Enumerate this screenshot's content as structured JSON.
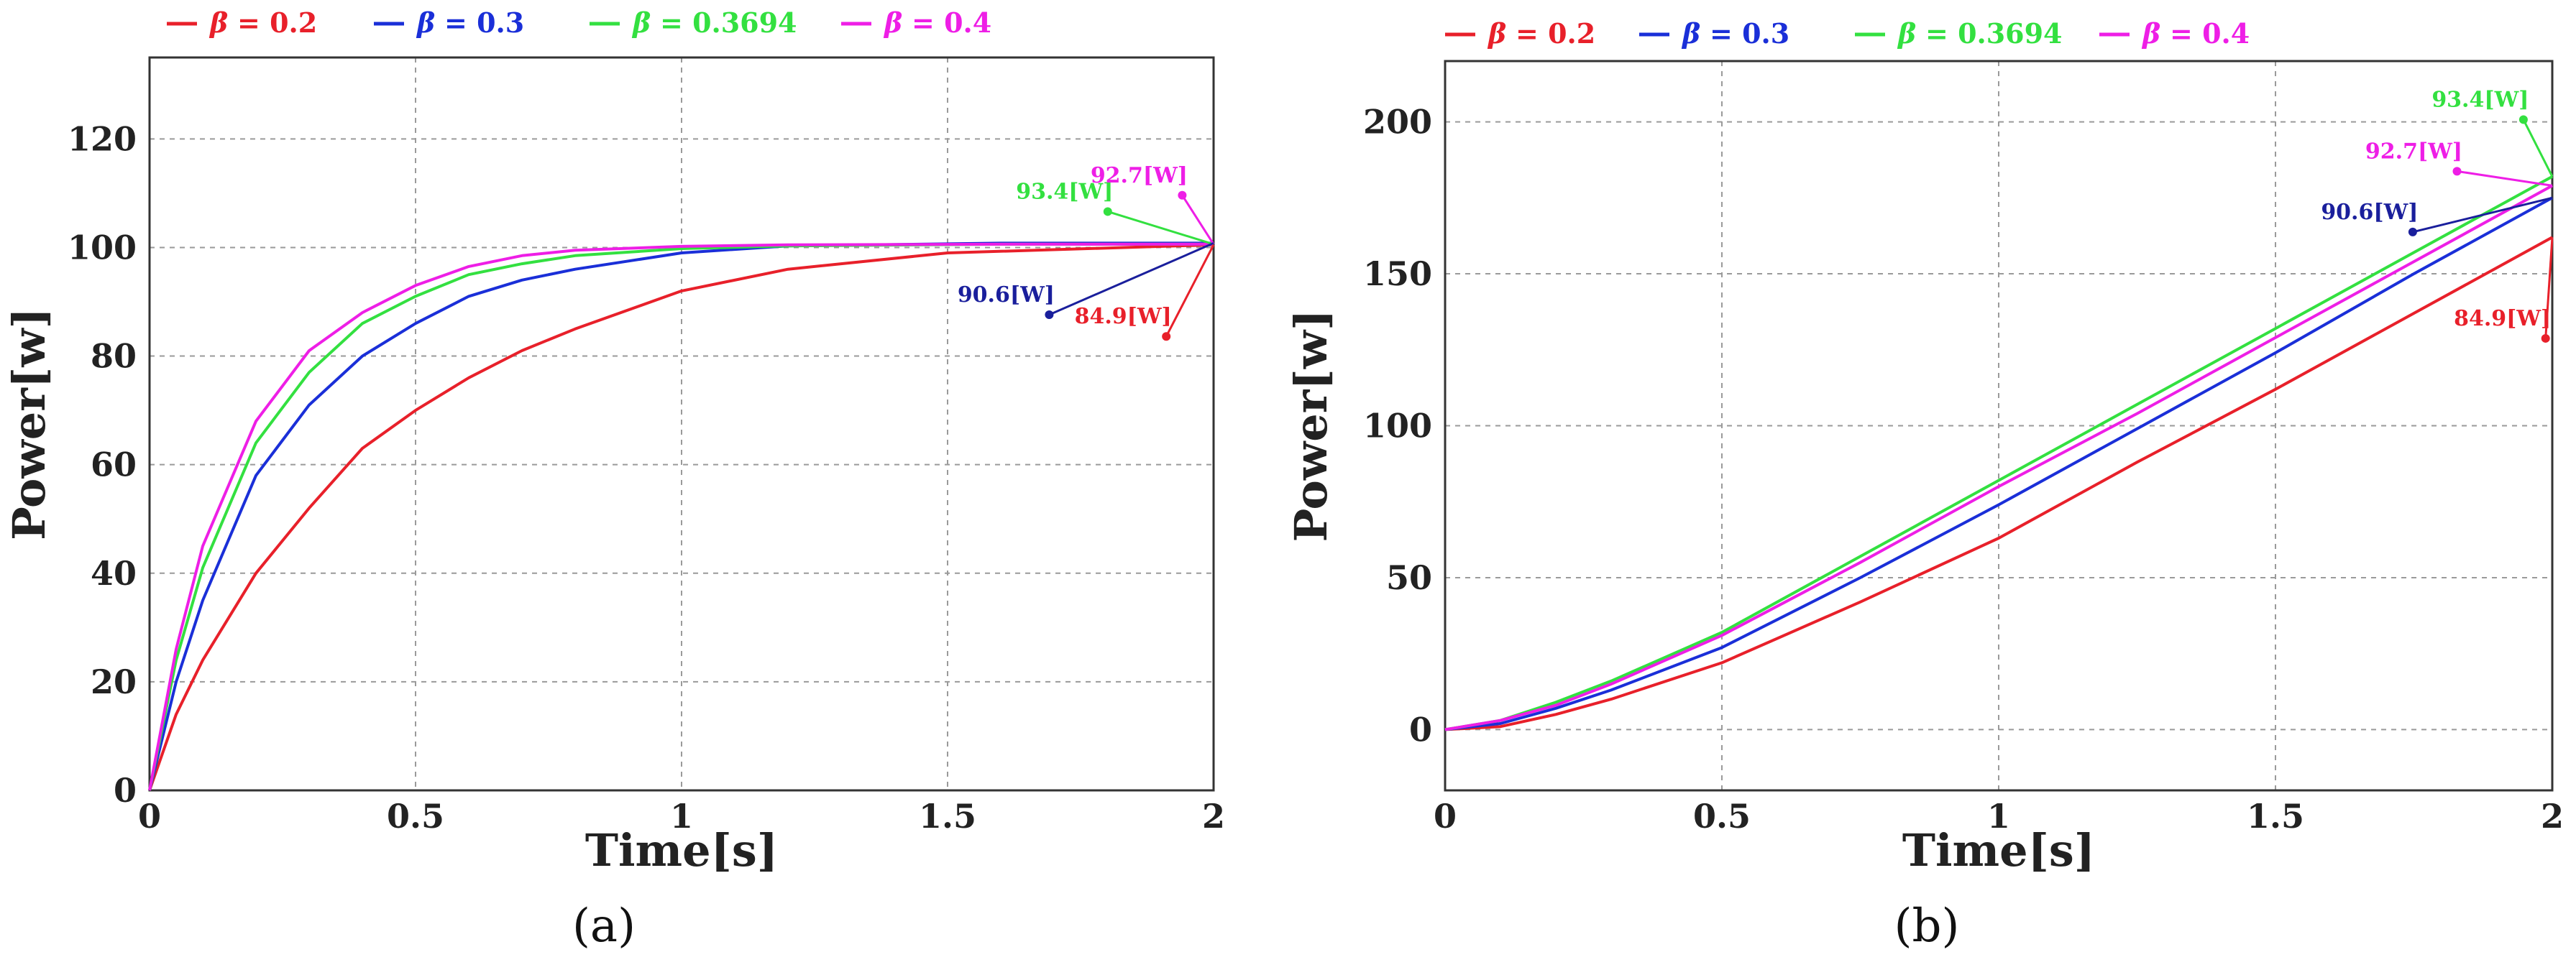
{
  "chart_data": [
    {
      "panel_label": "(a)",
      "type": "line",
      "xlabel": "Time[s]",
      "ylabel": "Power[w]",
      "xlim": [
        0,
        2
      ],
      "ylim": [
        0,
        135
      ],
      "xticks": [
        0,
        0.5,
        1,
        1.5,
        2
      ],
      "xtick_labels": [
        "0",
        "0.5",
        "1",
        "1.5",
        "2"
      ],
      "yticks": [
        0,
        20,
        40,
        60,
        80,
        100,
        120
      ],
      "ytick_labels": [
        "0",
        "20",
        "40",
        "60",
        "80",
        "100",
        "120"
      ],
      "grid": true,
      "legend_position": "top",
      "series": [
        {
          "name": "β = 0.2",
          "legend_symbol": "β",
          "legend_text": "= 0.2",
          "color": "#e8202a",
          "x": [
            0,
            0.05,
            0.1,
            0.2,
            0.3,
            0.4,
            0.5,
            0.6,
            0.7,
            0.8,
            1.0,
            1.2,
            1.5,
            2.0
          ],
          "y": [
            0,
            14,
            24,
            40,
            52,
            63,
            70,
            76,
            81,
            85,
            92,
            96,
            99,
            100.5
          ]
        },
        {
          "name": "β = 0.3",
          "legend_symbol": "β",
          "legend_text": "= 0.3",
          "color": "#1a2fd8",
          "x": [
            0,
            0.05,
            0.1,
            0.2,
            0.3,
            0.4,
            0.5,
            0.6,
            0.7,
            0.8,
            1.0,
            1.2,
            1.6,
            2.0
          ],
          "y": [
            0,
            20,
            35,
            58,
            71,
            80,
            86,
            91,
            94,
            96,
            99,
            100.3,
            100.8,
            100.8
          ]
        },
        {
          "name": "β = 0.3694",
          "legend_symbol": "β",
          "legend_text": "= 0.3694",
          "color": "#33e040",
          "x": [
            0,
            0.05,
            0.1,
            0.2,
            0.3,
            0.4,
            0.5,
            0.6,
            0.7,
            0.8,
            1.0,
            1.2,
            1.6,
            2.0
          ],
          "y": [
            0,
            24,
            41,
            64,
            77,
            86,
            91,
            95,
            97,
            98.5,
            99.8,
            100.3,
            100.6,
            100.6
          ]
        },
        {
          "name": "β = 0.4",
          "legend_symbol": "β",
          "legend_text": "= 0.4",
          "color": "#ee1ee6",
          "x": [
            0,
            0.05,
            0.1,
            0.2,
            0.3,
            0.4,
            0.5,
            0.6,
            0.7,
            0.8,
            1.0,
            1.2,
            1.6,
            2.0
          ],
          "y": [
            0,
            26,
            45,
            68,
            81,
            88,
            93,
            96.5,
            98.5,
            99.5,
            100.2,
            100.5,
            100.6,
            100.6
          ]
        }
      ],
      "annotations": [
        {
          "text": "93.4[W]",
          "color": "#33e040",
          "x": 1.72,
          "y": 109
        },
        {
          "text": "92.7[W]",
          "color": "#ee1ee6",
          "x": 1.86,
          "y": 112
        },
        {
          "text": "90.6[W]",
          "color": "#1a1f9c",
          "x": 1.61,
          "y": 90
        },
        {
          "text": "84.9[W]",
          "color": "#e8202a",
          "x": 1.83,
          "y": 86
        }
      ]
    },
    {
      "panel_label": "(b)",
      "type": "line",
      "xlabel": "Time[s]",
      "ylabel": "Power[w]",
      "xlim": [
        0,
        2
      ],
      "ylim": [
        -20,
        220
      ],
      "xticks": [
        0,
        0.5,
        1,
        1.5,
        2
      ],
      "xtick_labels": [
        "0",
        "0.5",
        "1",
        "1.5",
        "2"
      ],
      "yticks": [
        0,
        50,
        100,
        150,
        200
      ],
      "ytick_labels": [
        "0",
        "50",
        "100",
        "150",
        "200"
      ],
      "grid": true,
      "legend_position": "top",
      "series": [
        {
          "name": "β = 0.2",
          "legend_symbol": "β",
          "legend_text": "= 0.2",
          "color": "#e8202a",
          "x": [
            0,
            0.1,
            0.2,
            0.3,
            0.5,
            0.75,
            1.0,
            1.25,
            1.5,
            1.75,
            2.0
          ],
          "y": [
            0,
            1,
            5,
            10,
            22,
            42,
            63,
            88,
            112,
            137,
            162
          ]
        },
        {
          "name": "β = 0.3",
          "legend_symbol": "β",
          "legend_text": "= 0.3",
          "color": "#1a2fd8",
          "x": [
            0,
            0.1,
            0.2,
            0.3,
            0.5,
            0.75,
            1.0,
            1.25,
            1.5,
            1.75,
            2.0
          ],
          "y": [
            0,
            2,
            7,
            13,
            27,
            50,
            74,
            99,
            124,
            150,
            175
          ]
        },
        {
          "name": "β = 0.3694",
          "legend_symbol": "β",
          "legend_text": "= 0.3694",
          "color": "#33e040",
          "x": [
            0,
            0.1,
            0.2,
            0.3,
            0.5,
            0.75,
            1.0,
            1.25,
            1.5,
            1.75,
            2.0
          ],
          "y": [
            0,
            3,
            9,
            16,
            32,
            57,
            82,
            107,
            132,
            157,
            182
          ]
        },
        {
          "name": "β = 0.4",
          "legend_symbol": "β",
          "legend_text": "= 0.4",
          "color": "#ee1ee6",
          "x": [
            0,
            0.1,
            0.2,
            0.3,
            0.5,
            0.75,
            1.0,
            1.25,
            1.5,
            1.75,
            2.0
          ],
          "y": [
            0,
            3,
            8,
            15,
            31,
            55,
            80,
            104,
            129,
            154,
            179
          ]
        }
      ],
      "annotations": [
        {
          "text": "93.4[W]",
          "color": "#33e040",
          "x": 1.87,
          "y": 205
        },
        {
          "text": "92.7[W]",
          "color": "#ee1ee6",
          "x": 1.75,
          "y": 188
        },
        {
          "text": "90.6[W]",
          "color": "#1a1f9c",
          "x": 1.67,
          "y": 168
        },
        {
          "text": "84.9[W]",
          "color": "#e8202a",
          "x": 1.91,
          "y": 133
        }
      ]
    }
  ]
}
